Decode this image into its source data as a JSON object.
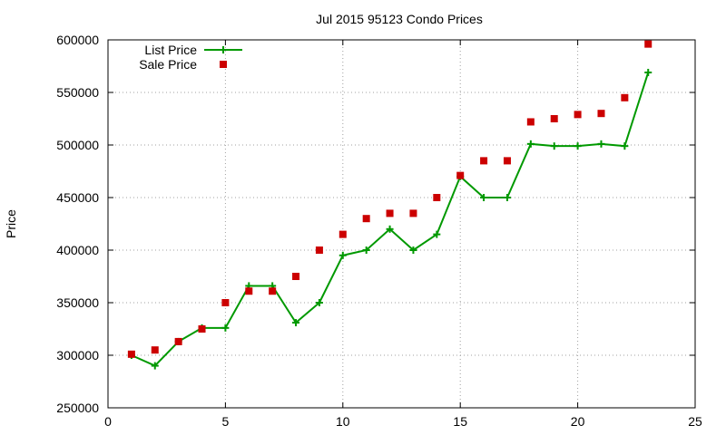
{
  "chart_data": {
    "type": "line",
    "title": "Jul 2015 95123 Condo Prices",
    "xlabel": "",
    "ylabel": "Price",
    "xlim": [
      0,
      25
    ],
    "ylim": [
      250000,
      600000
    ],
    "xticks": [
      "0",
      "5",
      "10",
      "15",
      "20",
      "25"
    ],
    "yticks": [
      "250000",
      "300000",
      "350000",
      "400000",
      "450000",
      "500000",
      "550000",
      "600000"
    ],
    "grid": true,
    "legend_position": "top-left",
    "series": [
      {
        "name": "List Price",
        "style": "line+cross",
        "color": "#009900",
        "x": [
          1,
          2,
          3,
          4,
          5,
          6,
          7,
          8,
          9,
          10,
          11,
          12,
          13,
          14,
          15,
          16,
          17,
          18,
          19,
          20,
          21,
          22,
          23
        ],
        "values": [
          300000,
          290000,
          313000,
          326000,
          326000,
          366000,
          366000,
          331000,
          350000,
          395000,
          400000,
          420000,
          400000,
          415000,
          470000,
          450000,
          450000,
          501000,
          499000,
          499000,
          501000,
          499000,
          569000
        ]
      },
      {
        "name": "Sale Price",
        "style": "square",
        "color": "#cc0000",
        "x": [
          1,
          2,
          3,
          4,
          5,
          6,
          7,
          8,
          9,
          10,
          11,
          12,
          13,
          14,
          15,
          16,
          17,
          18,
          19,
          20,
          21,
          22,
          23
        ],
        "values": [
          301000,
          305000,
          313000,
          325000,
          350000,
          361000,
          361000,
          375000,
          400000,
          415000,
          430000,
          435000,
          435000,
          450000,
          471000,
          485000,
          485000,
          522000,
          525000,
          529000,
          530000,
          545000,
          596000
        ]
      }
    ]
  }
}
